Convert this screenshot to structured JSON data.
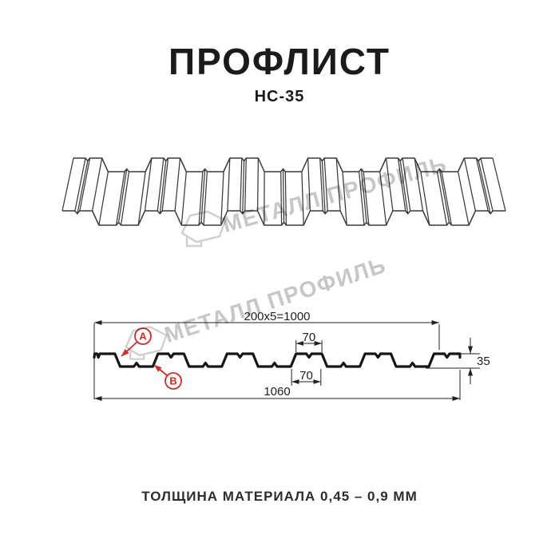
{
  "page": {
    "title": "ПРОФЛИСТ",
    "subtitle": "НС-35",
    "footer": "ТОЛЩИНА МАТЕРИАЛА 0,45 – 0,9 ММ"
  },
  "watermark": {
    "brand": "МЕТАЛЛ ПРОФИЛЬ"
  },
  "section": {
    "dims": {
      "pitch": "200x5=1000",
      "crest_top": "70",
      "crest_bottom": "70",
      "height": "35",
      "overall_width": "1060"
    },
    "point_labels": {
      "a": "A",
      "b": "B"
    }
  },
  "colors": {
    "sketch_line": "#3a3a3a",
    "section_line": "#161616",
    "dimension_line": "#222222",
    "accent_red": "#d42a2a",
    "watermark_gray": "#c7c7c7",
    "background": "#ffffff"
  }
}
